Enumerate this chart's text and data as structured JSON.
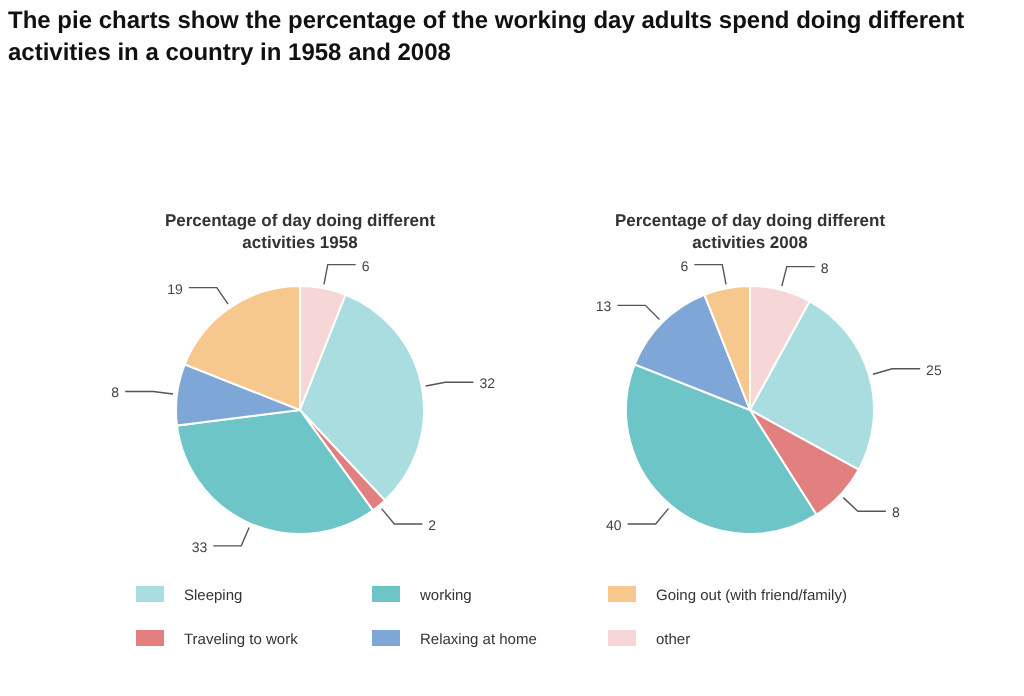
{
  "chart_data": [
    {
      "type": "pie",
      "title": "Percentage of day doing different activities 1958",
      "annotations": [
        "The pie charts show the percentage of the working day adults spend doing different activities in a country in 1958 and 2008"
      ],
      "categories": [
        "other",
        "Sleeping",
        "Traveling to work",
        "working",
        "Relaxing at home",
        "Going out (with friend/family)"
      ],
      "values": [
        6,
        32,
        2,
        33,
        8,
        19
      ],
      "colors": [
        "#f6d6d6",
        "#a9dde0",
        "#e27f7f",
        "#6ec5c7",
        "#7ea6d6",
        "#f6c88e"
      ],
      "data_labels": true,
      "legend": "bottom"
    },
    {
      "type": "pie",
      "title": "Percentage of day doing different activities 2008",
      "categories": [
        null,
        null,
        null,
        null,
        null,
        null
      ],
      "values": [
        8,
        25,
        8,
        40,
        13,
        6
      ],
      "colors": [
        "#f6d6d6",
        "#a9dde0",
        "#e27f7f",
        "#6ec5c7",
        "#7ea6d6",
        "#f6c88e"
      ],
      "data_labels": true
    }
  ]
}
